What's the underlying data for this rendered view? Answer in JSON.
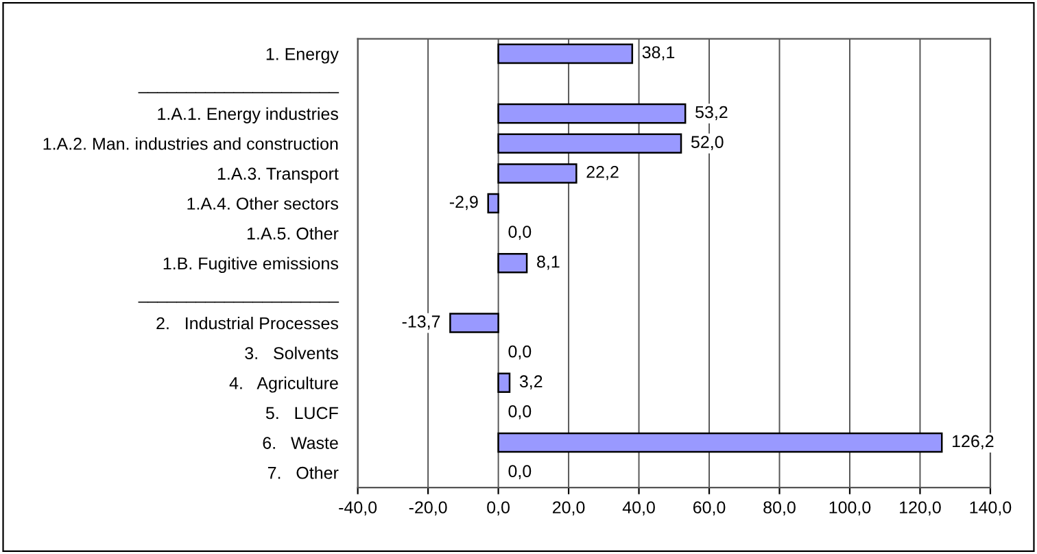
{
  "chart_data": {
    "type": "bar",
    "orientation": "horizontal",
    "categories": [
      "1. Energy",
      "_____________________",
      "1.A.1. Energy industries",
      "1.A.2. Man. industries and construction",
      "1.A.3. Transport",
      "1.A.4. Other sectors",
      "1.A.5. Other",
      "1.B. Fugitive emissions",
      "_____________________",
      "2.   Industrial Processes",
      "3.   Solvents",
      "4.   Agriculture",
      "5.   LUCF",
      "6.   Waste",
      "7.   Other"
    ],
    "values": [
      38.1,
      null,
      53.2,
      52.0,
      22.2,
      -2.9,
      0.0,
      8.1,
      null,
      -13.7,
      0.0,
      3.2,
      0.0,
      126.2,
      0.0
    ],
    "value_labels": [
      "38,1",
      null,
      "53,2",
      "52,0",
      "22,2",
      "-2,9",
      "0,0",
      "8,1",
      null,
      "-13,7",
      "0,0",
      "3,2",
      "0,0",
      "126,2",
      "0,0"
    ],
    "color": "#9999ff",
    "xlim": [
      -40,
      140
    ],
    "xticks": [
      {
        "value": -40,
        "label": "-40,0"
      },
      {
        "value": -20,
        "label": "-20,0"
      },
      {
        "value": 0,
        "label": "0,0"
      },
      {
        "value": 20,
        "label": "20,0"
      },
      {
        "value": 40,
        "label": "40,0"
      },
      {
        "value": 60,
        "label": "60,0"
      },
      {
        "value": 80,
        "label": "80,0"
      },
      {
        "value": 100,
        "label": "100,0"
      },
      {
        "value": 120,
        "label": "120,0"
      },
      {
        "value": 140,
        "label": "140,0"
      }
    ],
    "grid": "x"
  }
}
